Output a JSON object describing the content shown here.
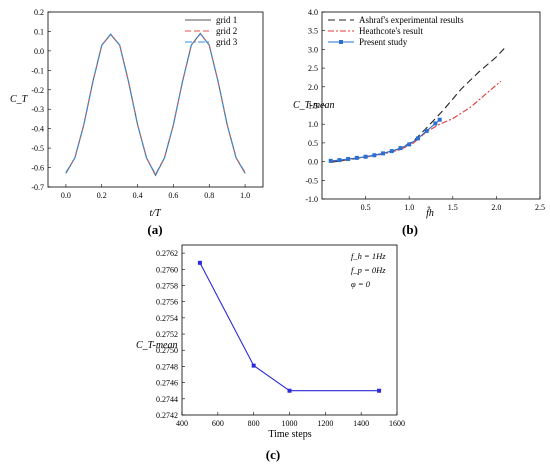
{
  "chart_data": [
    {
      "type": "line",
      "panel_label": "(a)",
      "xlabel": "t/T",
      "ylabel": "C_T",
      "xlim": [
        -0.1,
        1.1
      ],
      "ylim": [
        -0.7,
        0.2
      ],
      "xticks": [
        "0.0",
        "0.2",
        "0.4",
        "0.6",
        "0.8",
        "1.0"
      ],
      "yticks": [
        "-0.7",
        "-0.6",
        "-0.5",
        "-0.4",
        "-0.3",
        "-0.2",
        "-0.1",
        "0.0",
        "0.1",
        "0.2"
      ],
      "legend_position": "top-right",
      "series": [
        {
          "name": "grid 1",
          "color": "#555555",
          "dash": "solid",
          "x": [
            0,
            0.05,
            0.1,
            0.15,
            0.2,
            0.25,
            0.3,
            0.35,
            0.4,
            0.45,
            0.5,
            0.55,
            0.6,
            0.65,
            0.7,
            0.75,
            0.8,
            0.85,
            0.9,
            0.95,
            1.0
          ],
          "y": [
            -0.63,
            -0.55,
            -0.38,
            -0.16,
            0.03,
            0.085,
            0.03,
            -0.16,
            -0.38,
            -0.55,
            -0.64,
            -0.55,
            -0.38,
            -0.16,
            0.03,
            0.09,
            0.03,
            -0.16,
            -0.38,
            -0.55,
            -0.63
          ]
        },
        {
          "name": "grid 2",
          "color": "#e8514a",
          "dash": "6,3",
          "x": [
            0,
            0.05,
            0.1,
            0.15,
            0.2,
            0.25,
            0.3,
            0.35,
            0.4,
            0.45,
            0.5,
            0.55,
            0.6,
            0.65,
            0.7,
            0.75,
            0.8,
            0.85,
            0.9,
            0.95,
            1.0
          ],
          "y": [
            -0.625,
            -0.55,
            -0.38,
            -0.16,
            0.03,
            0.085,
            0.03,
            -0.16,
            -0.38,
            -0.55,
            -0.635,
            -0.55,
            -0.38,
            -0.16,
            0.03,
            0.088,
            0.03,
            -0.16,
            -0.38,
            -0.55,
            -0.625
          ]
        },
        {
          "name": "grid 3",
          "color": "#3a8fd6",
          "dash": "7,2,2,2",
          "x": [
            0,
            0.05,
            0.1,
            0.15,
            0.2,
            0.25,
            0.3,
            0.35,
            0.4,
            0.45,
            0.5,
            0.55,
            0.6,
            0.65,
            0.7,
            0.75,
            0.8,
            0.85,
            0.9,
            0.95,
            1.0
          ],
          "y": [
            -0.628,
            -0.55,
            -0.38,
            -0.16,
            0.03,
            0.087,
            0.03,
            -0.16,
            -0.38,
            -0.55,
            -0.638,
            -0.55,
            -0.38,
            -0.16,
            0.03,
            0.089,
            0.03,
            -0.16,
            -0.38,
            -0.55,
            -0.628
          ]
        }
      ]
    },
    {
      "type": "line",
      "panel_label": "(b)",
      "xlabel": "f̂h",
      "ylabel": "C_T-mean",
      "xlim": [
        0,
        2.5
      ],
      "ylim": [
        -1.0,
        4.0
      ],
      "xticks": [
        "0.5",
        "1.0",
        "1.5",
        "2.0",
        "2.5"
      ],
      "yticks": [
        "-1.0",
        "-0.5",
        "0.0",
        "0.5",
        "1.0",
        "1.5",
        "2.0",
        "2.5",
        "3.0",
        "3.5",
        "4.0"
      ],
      "legend_position": "top-left",
      "series": [
        {
          "name": "Ashraf's experimental results",
          "color": "#222222",
          "dash": "7,4",
          "x": [
            0.1,
            0.3,
            0.5,
            0.7,
            0.9,
            1.05,
            1.2,
            1.4,
            1.6,
            1.8,
            2.0,
            2.1
          ],
          "y": [
            -0.02,
            0.05,
            0.12,
            0.22,
            0.35,
            0.55,
            0.9,
            1.4,
            1.95,
            2.4,
            2.8,
            3.05
          ]
        },
        {
          "name": "Heathcote's result",
          "color": "#e03a3a",
          "dash": "6,2,2,2",
          "x": [
            0.1,
            0.3,
            0.5,
            0.7,
            0.9,
            1.05,
            1.2,
            1.35,
            1.5,
            1.7,
            1.9,
            2.05
          ],
          "y": [
            0.0,
            0.06,
            0.12,
            0.2,
            0.32,
            0.5,
            0.8,
            1.0,
            1.15,
            1.45,
            1.85,
            2.15
          ]
        },
        {
          "name": "Present study",
          "color": "#2a6fd1",
          "dash": "solid",
          "marker": "square",
          "x": [
            0.1,
            0.2,
            0.3,
            0.4,
            0.5,
            0.6,
            0.7,
            0.8,
            0.9,
            1.0,
            1.1,
            1.2,
            1.3,
            1.35
          ],
          "y": [
            0.02,
            0.04,
            0.07,
            0.1,
            0.13,
            0.17,
            0.22,
            0.28,
            0.36,
            0.46,
            0.62,
            0.82,
            1.02,
            1.12
          ]
        }
      ]
    },
    {
      "type": "line",
      "panel_label": "(c)",
      "xlabel": "Time steps",
      "ylabel": "C_T-mean",
      "xlim": [
        400,
        1600
      ],
      "ylim": [
        0.2742,
        0.2763
      ],
      "xticks": [
        "400",
        "600",
        "800",
        "1000",
        "1200",
        "1400",
        "1600"
      ],
      "yticks": [
        "0.2742",
        "0.2744",
        "0.2746",
        "0.2748",
        "0.2750",
        "0.2752",
        "0.2754",
        "0.2756",
        "0.2758",
        "0.2760",
        "0.2762"
      ],
      "annotations": [
        "f_h = 1Hz",
        "f_p = 0Hz",
        "φ = 0"
      ],
      "series": [
        {
          "name": "",
          "color": "#2b2bd9",
          "dash": "solid",
          "marker": "square",
          "x": [
            500,
            800,
            1000,
            1500
          ],
          "y": [
            0.27608,
            0.27481,
            0.2745,
            0.2745
          ]
        }
      ]
    }
  ]
}
